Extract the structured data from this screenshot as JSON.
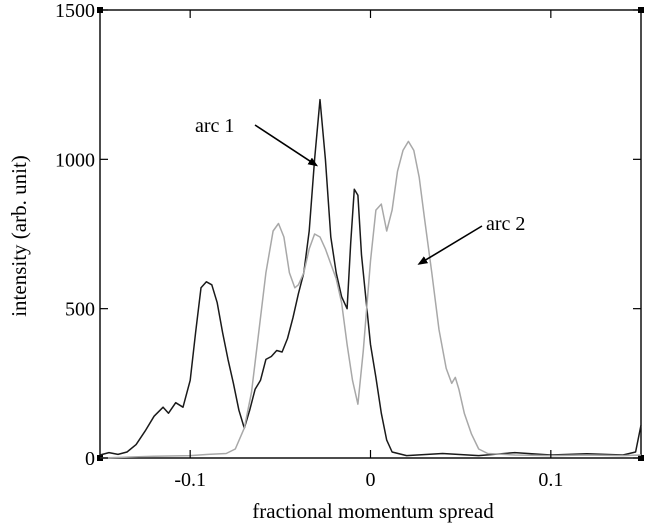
{
  "chart_data": {
    "type": "line",
    "xlabel": "fractional momentum spread",
    "ylabel": "intensity (arb. unit)",
    "xlim": [
      -0.15,
      0.15
    ],
    "ylim": [
      0,
      1500
    ],
    "x_ticks": [
      -0.1,
      0,
      0.1
    ],
    "x_tick_labels": [
      "-0.1",
      "0",
      "0.1"
    ],
    "y_ticks": [
      0,
      500,
      1000,
      1500
    ],
    "y_tick_labels": [
      "0",
      "500",
      "1000",
      "1500"
    ],
    "grid": false,
    "legend": "none",
    "series": [
      {
        "name": "arc 1",
        "color": "#1a1a1a",
        "points": [
          [
            -0.15,
            10
          ],
          [
            -0.145,
            18
          ],
          [
            -0.14,
            12
          ],
          [
            -0.135,
            20
          ],
          [
            -0.13,
            45
          ],
          [
            -0.125,
            90
          ],
          [
            -0.12,
            140
          ],
          [
            -0.115,
            170
          ],
          [
            -0.112,
            150
          ],
          [
            -0.108,
            185
          ],
          [
            -0.104,
            170
          ],
          [
            -0.1,
            260
          ],
          [
            -0.097,
            420
          ],
          [
            -0.094,
            570
          ],
          [
            -0.091,
            590
          ],
          [
            -0.088,
            580
          ],
          [
            -0.085,
            520
          ],
          [
            -0.082,
            420
          ],
          [
            -0.079,
            330
          ],
          [
            -0.076,
            250
          ],
          [
            -0.073,
            160
          ],
          [
            -0.07,
            100
          ],
          [
            -0.067,
            160
          ],
          [
            -0.064,
            230
          ],
          [
            -0.061,
            260
          ],
          [
            -0.058,
            330
          ],
          [
            -0.055,
            340
          ],
          [
            -0.052,
            360
          ],
          [
            -0.049,
            355
          ],
          [
            -0.046,
            400
          ],
          [
            -0.043,
            470
          ],
          [
            -0.04,
            550
          ],
          [
            -0.037,
            620
          ],
          [
            -0.034,
            760
          ],
          [
            -0.031,
            1000
          ],
          [
            -0.028,
            1200
          ],
          [
            -0.025,
            1000
          ],
          [
            -0.022,
            740
          ],
          [
            -0.019,
            620
          ],
          [
            -0.016,
            540
          ],
          [
            -0.013,
            500
          ],
          [
            -0.011,
            720
          ],
          [
            -0.009,
            900
          ],
          [
            -0.007,
            880
          ],
          [
            -0.005,
            680
          ],
          [
            -0.002,
            500
          ],
          [
            0.0,
            380
          ],
          [
            0.003,
            270
          ],
          [
            0.006,
            150
          ],
          [
            0.009,
            60
          ],
          [
            0.012,
            20
          ],
          [
            0.02,
            8
          ],
          [
            0.04,
            15
          ],
          [
            0.06,
            8
          ],
          [
            0.08,
            18
          ],
          [
            0.1,
            10
          ],
          [
            0.12,
            14
          ],
          [
            0.14,
            10
          ],
          [
            0.147,
            20
          ],
          [
            0.15,
            110
          ]
        ]
      },
      {
        "name": "arc 2",
        "color": "#a8a8a8",
        "points": [
          [
            -0.15,
            0
          ],
          [
            -0.12,
            6
          ],
          [
            -0.1,
            8
          ],
          [
            -0.09,
            12
          ],
          [
            -0.08,
            15
          ],
          [
            -0.075,
            30
          ],
          [
            -0.07,
            100
          ],
          [
            -0.066,
            220
          ],
          [
            -0.062,
            420
          ],
          [
            -0.058,
            620
          ],
          [
            -0.054,
            760
          ],
          [
            -0.051,
            785
          ],
          [
            -0.048,
            740
          ],
          [
            -0.045,
            620
          ],
          [
            -0.042,
            570
          ],
          [
            -0.04,
            580
          ],
          [
            -0.037,
            620
          ],
          [
            -0.034,
            700
          ],
          [
            -0.031,
            750
          ],
          [
            -0.028,
            740
          ],
          [
            -0.025,
            700
          ],
          [
            -0.022,
            650
          ],
          [
            -0.019,
            600
          ],
          [
            -0.016,
            520
          ],
          [
            -0.013,
            380
          ],
          [
            -0.01,
            260
          ],
          [
            -0.007,
            180
          ],
          [
            -0.004,
            360
          ],
          [
            0.0,
            660
          ],
          [
            0.003,
            830
          ],
          [
            0.006,
            850
          ],
          [
            0.009,
            760
          ],
          [
            0.012,
            830
          ],
          [
            0.015,
            960
          ],
          [
            0.018,
            1030
          ],
          [
            0.021,
            1060
          ],
          [
            0.024,
            1030
          ],
          [
            0.027,
            940
          ],
          [
            0.03,
            800
          ],
          [
            0.034,
            620
          ],
          [
            0.038,
            430
          ],
          [
            0.042,
            300
          ],
          [
            0.045,
            250
          ],
          [
            0.047,
            270
          ],
          [
            0.049,
            230
          ],
          [
            0.052,
            150
          ],
          [
            0.056,
            80
          ],
          [
            0.06,
            30
          ],
          [
            0.065,
            15
          ],
          [
            0.08,
            10
          ],
          [
            0.1,
            8
          ],
          [
            0.12,
            10
          ],
          [
            0.14,
            8
          ],
          [
            0.15,
            10
          ]
        ]
      }
    ],
    "annotations": [
      {
        "text": "arc 1",
        "target": [
          -0.03,
          980
        ]
      },
      {
        "text": "arc 2",
        "target": [
          0.027,
          650
        ]
      }
    ]
  }
}
